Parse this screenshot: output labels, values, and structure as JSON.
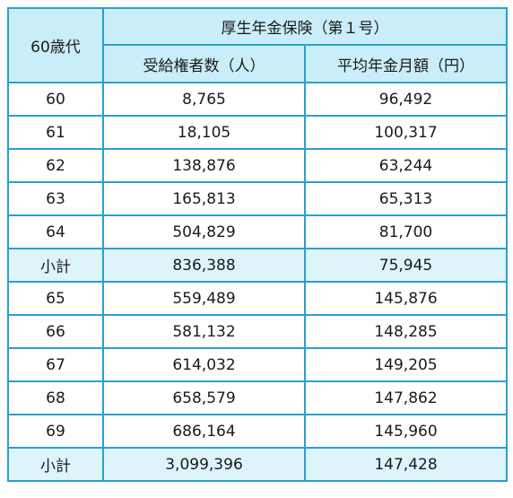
{
  "table": {
    "header": {
      "age_group": "60歳代",
      "group_title": "厚生年金保険（第１号）",
      "col_recipients": "受給権者数（人）",
      "col_average": "平均年金月額（円）"
    },
    "rows": [
      {
        "age": "60",
        "recipients": "8,765",
        "average": "96,492",
        "subtotal": false
      },
      {
        "age": "61",
        "recipients": "18,105",
        "average": "100,317",
        "subtotal": false
      },
      {
        "age": "62",
        "recipients": "138,876",
        "average": "63,244",
        "subtotal": false
      },
      {
        "age": "63",
        "recipients": "165,813",
        "average": "65,313",
        "subtotal": false
      },
      {
        "age": "64",
        "recipients": "504,829",
        "average": "81,700",
        "subtotal": false
      },
      {
        "age": "小計",
        "recipients": "836,388",
        "average": "75,945",
        "subtotal": true
      },
      {
        "age": "65",
        "recipients": "559,489",
        "average": "145,876",
        "subtotal": false
      },
      {
        "age": "66",
        "recipients": "581,132",
        "average": "148,285",
        "subtotal": false
      },
      {
        "age": "67",
        "recipients": "614,032",
        "average": "149,205",
        "subtotal": false
      },
      {
        "age": "68",
        "recipients": "658,579",
        "average": "147,862",
        "subtotal": false
      },
      {
        "age": "69",
        "recipients": "686,164",
        "average": "145,960",
        "subtotal": false
      },
      {
        "age": "小計",
        "recipients": "3,099,396",
        "average": "147,428",
        "subtotal": true
      }
    ]
  },
  "colors": {
    "border": "#2a9fd3",
    "header_bg": "#c9eef9",
    "subtotal_bg": "#ddf4fb"
  }
}
